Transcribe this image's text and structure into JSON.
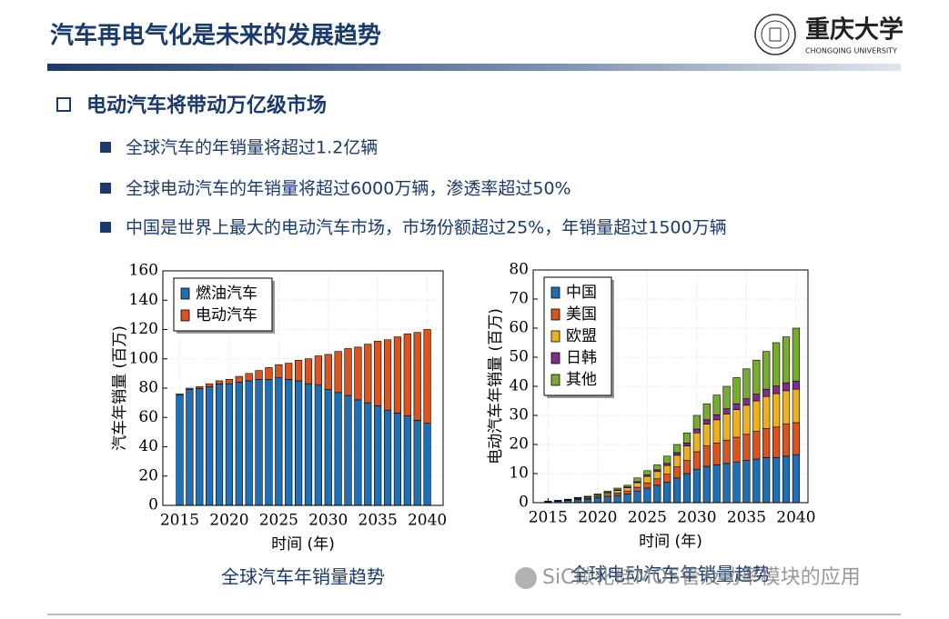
{
  "header": {
    "title": "汽车再电气化是未来的发展趋势",
    "logo_text": "重庆大学",
    "logo_subtext": "CHONGQING UNIVERSITY"
  },
  "section": "电动汽车将带动万亿级市场",
  "bullets": [
    "全球汽车的年销量将超过1.2亿辆",
    "全球电动汽车的年销量将超过6000万辆，渗透率超过50%",
    "中国是世界上最大的电动汽车市场，市场份额超过25%，年销量超过1500万辆"
  ],
  "watermark": "SiC碳化硅MOS管及功率模块的应用",
  "chart_data": [
    {
      "type": "stacked-bar",
      "caption": "全球汽车年销量趋势",
      "x_label": "时间 (年)",
      "y_label": "汽车年销量 (百万)",
      "x": [
        2015,
        2016,
        2017,
        2018,
        2019,
        2020,
        2021,
        2022,
        2023,
        2024,
        2025,
        2026,
        2027,
        2028,
        2029,
        2030,
        2031,
        2032,
        2033,
        2034,
        2035,
        2036,
        2037,
        2038,
        2039,
        2040
      ],
      "series": [
        {
          "name": "燃油汽车",
          "color": "#1f6fb5",
          "values": [
            75.5,
            79.2,
            79.8,
            81,
            82.8,
            83,
            84,
            85,
            86,
            86,
            87,
            86,
            85,
            83,
            82,
            79,
            77,
            75,
            72,
            70,
            68,
            65,
            63,
            61,
            58,
            56
          ]
        },
        {
          "name": "电动汽车",
          "color": "#d9541e",
          "values": [
            0.5,
            0.8,
            1.2,
            2,
            2.2,
            3,
            4,
            5,
            6,
            8,
            9,
            11,
            14,
            17,
            20,
            24,
            28,
            32,
            36,
            40,
            44,
            48,
            52,
            56,
            60,
            64
          ]
        }
      ],
      "xlim": [
        2013.3,
        2041.6
      ],
      "xticks": [
        2015,
        2020,
        2025,
        2030,
        2035,
        2040
      ],
      "ylim": [
        0,
        160
      ],
      "yticks": [
        0,
        20,
        40,
        60,
        80,
        100,
        120,
        140,
        160
      ],
      "grid": true,
      "legend": "top-left"
    },
    {
      "type": "stacked-bar",
      "caption": "全球电动汽车年销量趋势",
      "x_label": "时间 (年)",
      "y_label": "电动汽车年销量 (百万)",
      "x": [
        2015,
        2016,
        2017,
        2018,
        2019,
        2020,
        2021,
        2022,
        2023,
        2024,
        2025,
        2026,
        2027,
        2028,
        2029,
        2030,
        2031,
        2032,
        2033,
        2034,
        2035,
        2036,
        2037,
        2038,
        2039,
        2040
      ],
      "series": [
        {
          "name": "中国",
          "color": "#1f6fb5",
          "values": [
            0.3,
            0.5,
            0.7,
            1,
            1.2,
            1.6,
            2,
            2.5,
            3,
            4,
            5,
            6,
            7,
            8.5,
            10,
            11.5,
            12.5,
            13,
            13.5,
            14,
            14.5,
            15,
            15.5,
            15.5,
            16,
            16.5
          ]
        },
        {
          "name": "美国",
          "color": "#d9541e",
          "values": [
            0.1,
            0.1,
            0.2,
            0.3,
            0.3,
            0.4,
            0.6,
            0.8,
            1,
            1.3,
            1.8,
            2.2,
            2.8,
            3.8,
            4.5,
            6,
            7,
            7.5,
            8,
            8.5,
            9,
            9.5,
            10,
            10.5,
            11,
            11
          ]
        },
        {
          "name": "欧盟",
          "color": "#edb120",
          "values": [
            0.1,
            0.1,
            0.2,
            0.3,
            0.4,
            0.5,
            0.7,
            0.9,
            1.1,
            1.6,
            2.2,
            2.5,
            3,
            4,
            5,
            6.5,
            7.5,
            8,
            9,
            9.5,
            10,
            10.5,
            11,
            11.5,
            11.5,
            11.5
          ]
        },
        {
          "name": "日韩",
          "color": "#7e2f8e",
          "values": [
            0,
            0.05,
            0.05,
            0.1,
            0.1,
            0.1,
            0.2,
            0.2,
            0.3,
            0.3,
            0.5,
            0.6,
            0.7,
            0.9,
            1,
            1.3,
            1.5,
            1.7,
            1.8,
            2,
            2.2,
            2.3,
            2.5,
            2.6,
            2.7,
            2.8
          ]
        },
        {
          "name": "其他",
          "color": "#77ac30",
          "values": [
            0,
            0.05,
            0.05,
            0.1,
            0.2,
            0.4,
            0.5,
            0.6,
            0.6,
            1.3,
            1.5,
            1.7,
            2.5,
            2.8,
            3.5,
            4.7,
            5.5,
            6.8,
            7.7,
            9,
            10.3,
            11.7,
            13,
            14.9,
            15.8,
            18.2
          ]
        }
      ],
      "xlim": [
        2013.5,
        2041.2
      ],
      "xticks": [
        2015,
        2020,
        2025,
        2030,
        2035,
        2040
      ],
      "ylim": [
        0,
        80
      ],
      "yticks": [
        0,
        10,
        20,
        30,
        40,
        50,
        60,
        70,
        80
      ],
      "grid": true,
      "legend": "top-left"
    }
  ]
}
